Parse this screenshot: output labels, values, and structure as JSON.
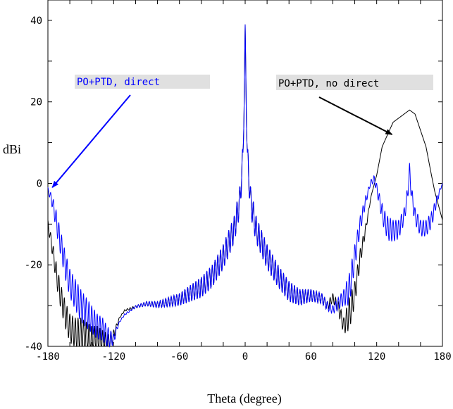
{
  "chart_data": {
    "type": "line",
    "title": "",
    "xlabel": "Theta (degree)",
    "ylabel": "dBi",
    "xlim": [
      -180,
      180
    ],
    "ylim": [
      -40,
      45
    ],
    "xticks": [
      -180,
      -120,
      -60,
      0,
      60,
      120,
      180
    ],
    "yticks": [
      -40,
      -20,
      0,
      20,
      40
    ],
    "grid": false,
    "annotations": [
      {
        "text": "PO+PTD, direct",
        "color": "#0000ff",
        "bg": "#e0e0e0",
        "arrow_to": [
          -176,
          -1
        ]
      },
      {
        "text": "PO+PTD, no direct",
        "color": "#000000",
        "bg": "#e0e0e0",
        "arrow_to": [
          -176,
          -1
        ]
      }
    ],
    "series": [
      {
        "color": "#000000",
        "base": [
          [
            -180,
            -9
          ],
          [
            -176,
            -14
          ],
          [
            -172,
            -20
          ],
          [
            -168,
            -25
          ],
          [
            -164,
            -29
          ],
          [
            -160,
            -32
          ],
          [
            -155,
            -33
          ],
          [
            -150,
            -33
          ],
          [
            -145,
            -34
          ],
          [
            -140,
            -35
          ],
          [
            -135,
            -35
          ],
          [
            -130,
            -36
          ],
          [
            -125,
            -37
          ],
          [
            -120,
            -36
          ],
          [
            -115,
            -33
          ],
          [
            -110,
            -31
          ],
          [
            -100,
            -30
          ],
          [
            -90,
            -29
          ],
          [
            -80,
            -29
          ],
          [
            -70,
            -28
          ],
          [
            -60,
            -27
          ],
          [
            -50,
            -25
          ],
          [
            -40,
            -23
          ],
          [
            -30,
            -20
          ],
          [
            -20,
            -15
          ],
          [
            -10,
            -8
          ],
          [
            -5,
            -1
          ],
          [
            -2,
            10
          ],
          [
            0,
            39
          ],
          [
            2,
            10
          ],
          [
            5,
            -1
          ],
          [
            10,
            -8
          ],
          [
            20,
            -15
          ],
          [
            30,
            -20
          ],
          [
            40,
            -24
          ],
          [
            50,
            -26
          ],
          [
            60,
            -26
          ],
          [
            70,
            -27
          ],
          [
            75,
            -29
          ],
          [
            80,
            -27
          ],
          [
            85,
            -29
          ],
          [
            90,
            -33
          ],
          [
            95,
            -28
          ],
          [
            100,
            -24
          ],
          [
            105,
            -16
          ],
          [
            110,
            -10
          ],
          [
            115,
            -3
          ],
          [
            120,
            2
          ],
          [
            125,
            9
          ],
          [
            130,
            12
          ],
          [
            135,
            15
          ],
          [
            140,
            16
          ],
          [
            145,
            17
          ],
          [
            150,
            18
          ],
          [
            155,
            17
          ],
          [
            160,
            13
          ],
          [
            165,
            9
          ],
          [
            170,
            2
          ],
          [
            173,
            -2
          ],
          [
            176,
            -5
          ],
          [
            180,
            -9
          ]
        ],
        "ripple": [
          [
            -180,
            2
          ],
          [
            -170,
            6
          ],
          [
            -150,
            8
          ],
          [
            -125,
            5
          ],
          [
            -115,
            0.3
          ],
          [
            -100,
            0.6
          ],
          [
            -80,
            1.5
          ],
          [
            -60,
            3
          ],
          [
            -40,
            5
          ],
          [
            -20,
            6
          ],
          [
            -4,
            7
          ],
          [
            4,
            7
          ],
          [
            20,
            6
          ],
          [
            40,
            5
          ],
          [
            60,
            3
          ],
          [
            80,
            2
          ],
          [
            90,
            4
          ],
          [
            95,
            8
          ],
          [
            100,
            6
          ],
          [
            108,
            3
          ],
          [
            115,
            0
          ],
          [
            180,
            0
          ]
        ]
      },
      {
        "color": "#0000ff",
        "base": [
          [
            -180,
            -1
          ],
          [
            -176,
            -3
          ],
          [
            -173,
            -6
          ],
          [
            -168,
            -12
          ],
          [
            -164,
            -17
          ],
          [
            -160,
            -21
          ],
          [
            -156,
            -23
          ],
          [
            -150,
            -26
          ],
          [
            -145,
            -28
          ],
          [
            -140,
            -30
          ],
          [
            -135,
            -32
          ],
          [
            -130,
            -33
          ],
          [
            -126,
            -35
          ],
          [
            -120,
            -37
          ],
          [
            -117,
            -35
          ],
          [
            -115,
            -34
          ],
          [
            -110,
            -32
          ],
          [
            -100,
            -30
          ],
          [
            -90,
            -29
          ],
          [
            -80,
            -29
          ],
          [
            -70,
            -28
          ],
          [
            -60,
            -27
          ],
          [
            -50,
            -25
          ],
          [
            -40,
            -23
          ],
          [
            -30,
            -20
          ],
          [
            -20,
            -15
          ],
          [
            -10,
            -8
          ],
          [
            -5,
            -1
          ],
          [
            -2,
            10
          ],
          [
            0,
            39
          ],
          [
            2,
            10
          ],
          [
            5,
            -1
          ],
          [
            10,
            -8
          ],
          [
            20,
            -15
          ],
          [
            30,
            -20
          ],
          [
            40,
            -24
          ],
          [
            50,
            -26
          ],
          [
            60,
            -26
          ],
          [
            70,
            -27
          ],
          [
            75,
            -29
          ],
          [
            80,
            -30
          ],
          [
            85,
            -28
          ],
          [
            90,
            -26
          ],
          [
            95,
            -22
          ],
          [
            100,
            -15
          ],
          [
            105,
            -8
          ],
          [
            110,
            -3
          ],
          [
            115,
            1
          ],
          [
            118,
            2
          ],
          [
            122,
            -2
          ],
          [
            126,
            -6
          ],
          [
            130,
            -8
          ],
          [
            135,
            -9
          ],
          [
            140,
            -9
          ],
          [
            145,
            -6
          ],
          [
            148,
            -1
          ],
          [
            150,
            5
          ],
          [
            152,
            -1
          ],
          [
            155,
            -6
          ],
          [
            160,
            -9
          ],
          [
            165,
            -9
          ],
          [
            170,
            -7
          ],
          [
            175,
            -3
          ],
          [
            178,
            -1
          ],
          [
            180,
            0
          ]
        ],
        "ripple": [
          [
            -180,
            1
          ],
          [
            -170,
            6
          ],
          [
            -150,
            8
          ],
          [
            -125,
            5
          ],
          [
            -115,
            0.3
          ],
          [
            -100,
            0.6
          ],
          [
            -80,
            1.5
          ],
          [
            -60,
            3
          ],
          [
            -40,
            5
          ],
          [
            -20,
            6
          ],
          [
            -4,
            7
          ],
          [
            4,
            7
          ],
          [
            20,
            6
          ],
          [
            40,
            5
          ],
          [
            60,
            3
          ],
          [
            80,
            2
          ],
          [
            90,
            4
          ],
          [
            95,
            8
          ],
          [
            100,
            6
          ],
          [
            108,
            3
          ],
          [
            114,
            1
          ],
          [
            122,
            3
          ],
          [
            130,
            6
          ],
          [
            145,
            4
          ],
          [
            155,
            4
          ],
          [
            170,
            4
          ],
          [
            178,
            1
          ],
          [
            180,
            0
          ]
        ]
      }
    ]
  }
}
